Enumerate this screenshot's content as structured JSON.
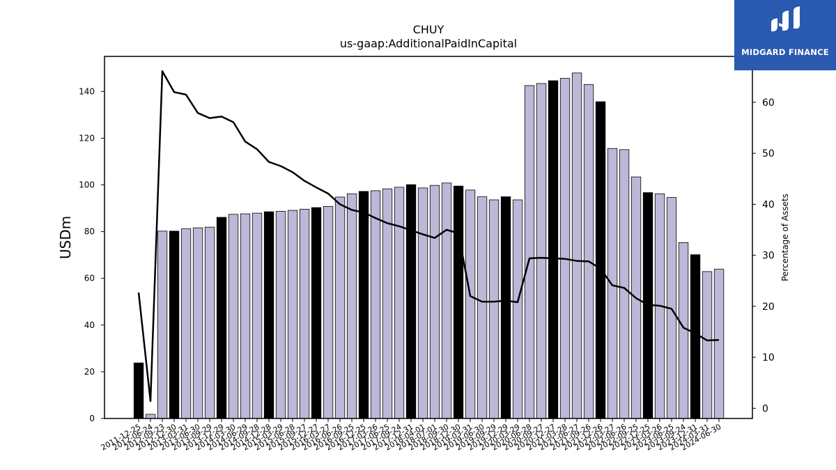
{
  "logo": {
    "text": "MIDGARD FINANCE"
  },
  "chart_data": {
    "type": "bar",
    "title": "CHUY",
    "subtitle": "us-gaap:AdditionalPaidInCapital",
    "ylabel": "USDm",
    "y2label": "Percentage of Assets",
    "ylim": [
      0,
      155
    ],
    "y2lim": [
      -2,
      69
    ],
    "yticks": [
      0,
      20,
      40,
      60,
      80,
      100,
      120,
      140
    ],
    "y2ticks": [
      0,
      10,
      20,
      30,
      40,
      50,
      60
    ],
    "colors": {
      "bar_light": "#bcb8d8",
      "bar_dark": "#000000",
      "line": "#000000"
    },
    "categories": [
      "2011-12-25",
      "2012-06-24",
      "2012-09-23",
      "2012-12-30",
      "2013-03-31",
      "2013-06-30",
      "2013-09-29",
      "2013-12-29",
      "2014-03-30",
      "2014-06-29",
      "2014-09-28",
      "2014-12-28",
      "2015-03-29",
      "2015-06-28",
      "2015-09-27",
      "2015-12-27",
      "2016-03-27",
      "2016-06-26",
      "2016-09-25",
      "2016-12-25",
      "2017-03-26",
      "2017-06-25",
      "2017-09-24",
      "2017-12-31",
      "2018-04-01",
      "2018-07-01",
      "2018-09-30",
      "2018-12-30",
      "2019-03-31",
      "2019-06-30",
      "2019-09-29",
      "2019-12-29",
      "2020-03-29",
      "2020-06-28",
      "2020-09-27",
      "2020-12-27",
      "2021-03-28",
      "2021-06-27",
      "2021-09-26",
      "2021-12-26",
      "2022-03-27",
      "2022-06-26",
      "2022-09-25",
      "2022-12-25",
      "2023-03-26",
      "2023-06-25",
      "2023-09-24",
      "2023-12-31",
      "2024-03-31",
      "2024-06-30"
    ],
    "series": [
      {
        "type": "bar",
        "values": [
          23.8,
          1.8,
          80.2,
          80.2,
          81.2,
          81.6,
          81.9,
          86.1,
          87.4,
          87.6,
          87.9,
          88.5,
          88.7,
          89.1,
          89.6,
          90.3,
          90.8,
          94.8,
          96.2,
          97.2,
          97.5,
          98.3,
          99.0,
          100.1,
          98.7,
          99.8,
          100.8,
          99.5,
          97.8,
          94.9,
          93.6,
          94.9,
          93.6,
          142.5,
          143.4,
          144.6,
          145.6,
          147.9,
          143.0,
          135.6,
          115.6,
          115.1,
          103.4,
          96.7,
          96.2,
          94.6,
          75.3,
          70.1,
          62.9,
          63.9
        ],
        "dark": [
          true,
          false,
          false,
          true,
          false,
          false,
          false,
          true,
          false,
          false,
          false,
          true,
          false,
          false,
          false,
          true,
          false,
          false,
          false,
          true,
          false,
          false,
          false,
          true,
          false,
          false,
          false,
          true,
          false,
          false,
          false,
          true,
          false,
          false,
          false,
          true,
          false,
          false,
          false,
          true,
          false,
          false,
          false,
          true,
          false,
          false,
          false,
          true,
          false,
          false
        ]
      },
      {
        "type": "line",
        "axis": "right",
        "values": [
          22.7,
          1.4,
          66.1,
          62.0,
          61.5,
          57.9,
          56.9,
          57.2,
          56.1,
          52.3,
          50.8,
          48.3,
          47.5,
          46.3,
          44.6,
          43.3,
          42.1,
          40.0,
          38.9,
          38.4,
          37.3,
          36.3,
          35.7,
          34.9,
          34.1,
          33.4,
          35.0,
          34.3,
          22.0,
          20.9,
          20.9,
          21.1,
          20.8,
          29.4,
          29.5,
          29.4,
          29.3,
          28.9,
          28.8,
          27.4,
          24.1,
          23.6,
          21.6,
          20.3,
          20.1,
          19.5,
          15.8,
          14.7,
          13.3,
          13.4
        ]
      }
    ]
  }
}
